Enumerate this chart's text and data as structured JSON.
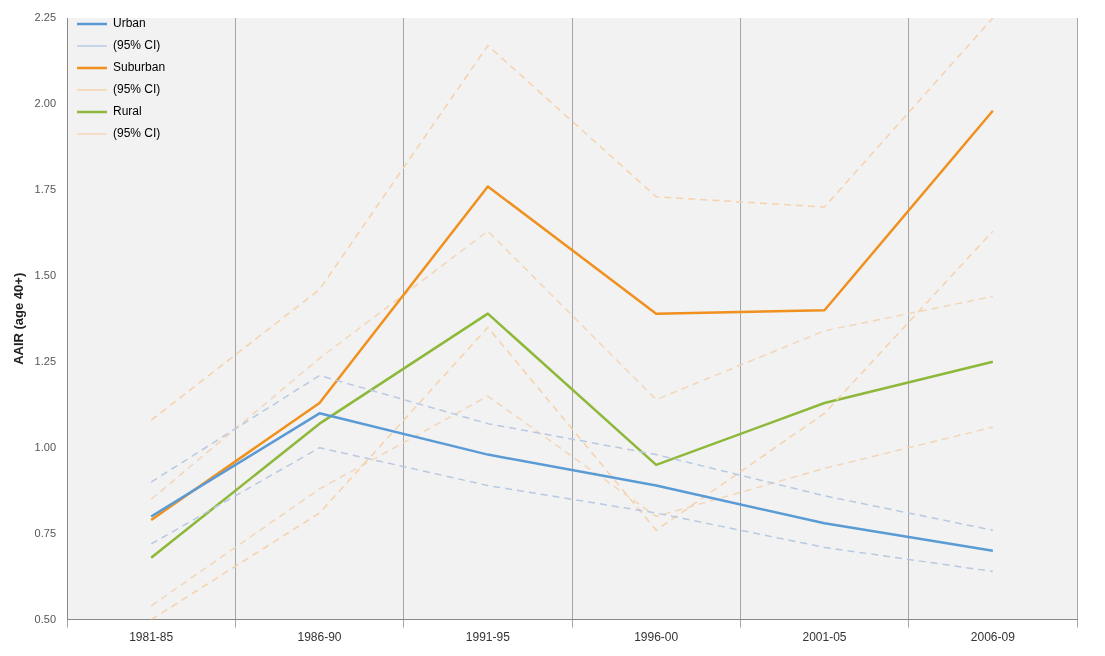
{
  "chart_data": {
    "type": "line",
    "ylabel": "AAIR (age 40+)",
    "categories": [
      "1981-85",
      "1986-90",
      "1991-95",
      "1996-00",
      "2001-05",
      "2006-09"
    ],
    "series": [
      {
        "name": "Urban",
        "color": "#5b9bd5",
        "line_style": "solid",
        "values": [
          0.8,
          1.1,
          0.98,
          0.89,
          0.78,
          0.7
        ]
      },
      {
        "name": "(95% CI)",
        "color": "#b9c9e2",
        "line_style": "dashed",
        "values": [
          0.9,
          1.21,
          1.07,
          0.98,
          0.86,
          0.76
        ]
      },
      {
        "color": "#b9c9e2",
        "line_style": "dashed",
        "values": [
          0.72,
          1.0,
          0.89,
          0.81,
          0.71,
          0.64
        ]
      },
      {
        "name": "Suburban",
        "color": "#f0901e",
        "line_style": "solid",
        "values": [
          0.79,
          1.13,
          1.76,
          1.39,
          1.4,
          1.98
        ]
      },
      {
        "name": "(95% CI)",
        "color": "#f6d2ac",
        "line_style": "dashed",
        "values": [
          1.08,
          1.46,
          2.17,
          1.73,
          1.7,
          2.25
        ]
      },
      {
        "color": "#f6d2ac",
        "line_style": "dashed",
        "values": [
          0.5,
          0.81,
          1.35,
          0.76,
          1.1,
          1.63
        ]
      },
      {
        "name": "Rural",
        "color": "#8db83a",
        "line_style": "solid",
        "values": [
          0.68,
          1.07,
          1.39,
          0.95,
          1.13,
          1.25
        ]
      },
      {
        "name": "(95% CI)",
        "color": "#f3d6b8",
        "line_style": "dashed",
        "values": [
          0.85,
          1.26,
          1.63,
          1.14,
          1.34,
          1.44
        ]
      },
      {
        "color": "#f3d6b8",
        "line_style": "dashed",
        "values": [
          0.54,
          0.88,
          1.15,
          0.8,
          0.94,
          1.06
        ]
      }
    ],
    "ylim": [
      0.5,
      2.25
    ],
    "yticks": [
      {
        "value": 0.5,
        "label": "0.50"
      },
      {
        "value": 0.75,
        "label": "0.75"
      },
      {
        "value": 1,
        "label": "1.00"
      },
      {
        "value": 1.25,
        "label": "1.25"
      },
      {
        "value": 1.5,
        "label": "1.50"
      },
      {
        "value": 1.75,
        "label": "1.75"
      },
      {
        "value": 2,
        "label": "2.00"
      },
      {
        "value": 2.25,
        "label": "2.25"
      }
    ],
    "grid": "x",
    "legend": "top left",
    "marker": "none"
  }
}
